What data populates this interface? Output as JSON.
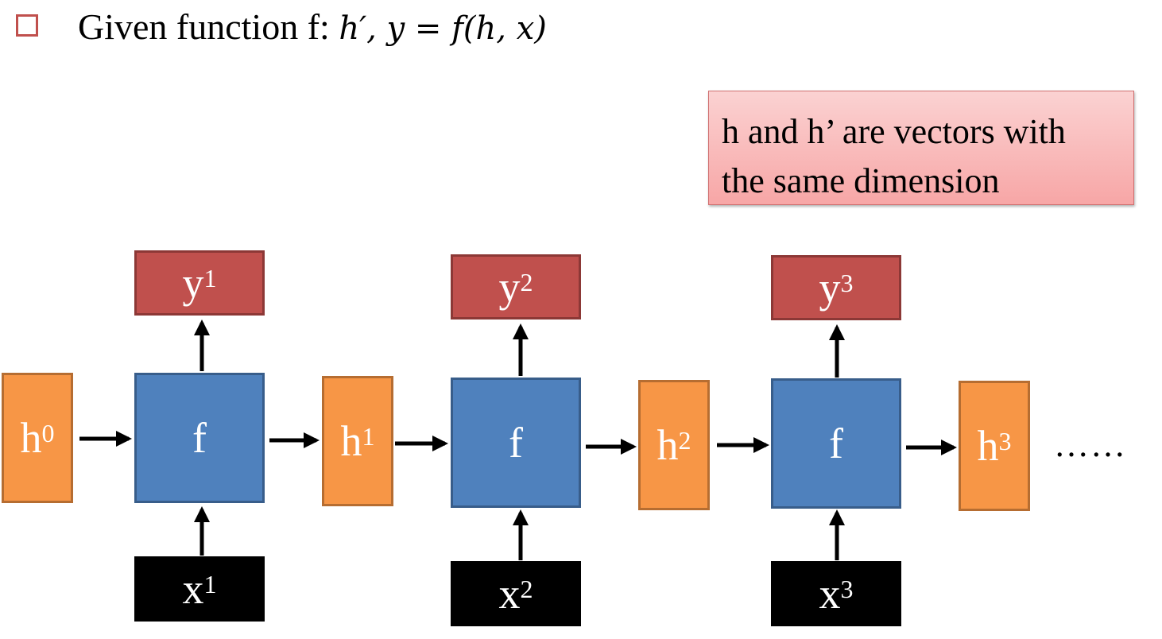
{
  "header": {
    "prefix": "Given function f: ",
    "formula": "h′, y = f(h, x)"
  },
  "note": {
    "line1": "h and h’ are vectors with",
    "line2": "the same dimension"
  },
  "nodes": {
    "h0": {
      "base": "h",
      "sup": "0"
    },
    "h1": {
      "base": "h",
      "sup": "1"
    },
    "h2": {
      "base": "h",
      "sup": "2"
    },
    "h3": {
      "base": "h",
      "sup": "3"
    },
    "f1": {
      "label": "f"
    },
    "f2": {
      "label": "f"
    },
    "f3": {
      "label": "f"
    },
    "y1": {
      "base": "y",
      "sup": "1"
    },
    "y2": {
      "base": "y",
      "sup": "2"
    },
    "y3": {
      "base": "y",
      "sup": "3"
    },
    "x1": {
      "base": "x",
      "sup": "1"
    },
    "x2": {
      "base": "x",
      "sup": "2"
    },
    "x3": {
      "base": "x",
      "sup": "3"
    }
  },
  "ellipsis": "……",
  "colors": {
    "hidden": "#f79646",
    "function": "#4f81bd",
    "output": "#c0504d",
    "input": "#000000",
    "note_bg": "#f9baba",
    "bullet": "#c0504d"
  }
}
